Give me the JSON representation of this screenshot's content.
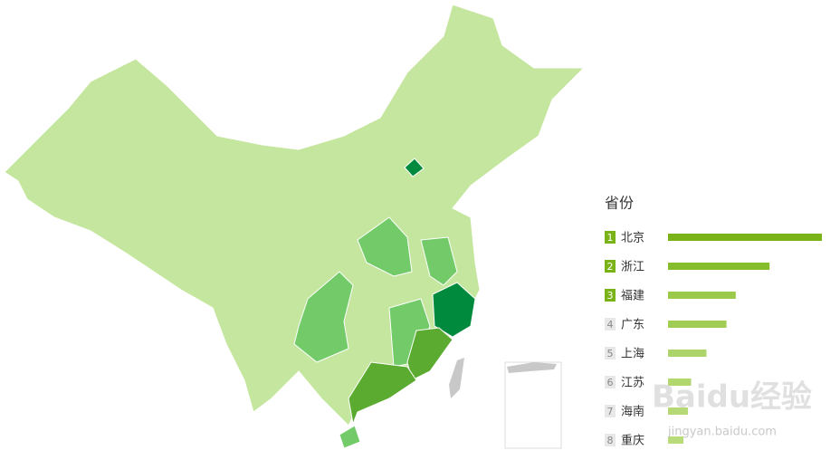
{
  "legend": {
    "title": "省份",
    "items": [
      {
        "rank": 1,
        "name": "北京",
        "value": 100,
        "color": "#7ab317",
        "badge_color": "#7ab317"
      },
      {
        "rank": 2,
        "name": "浙江",
        "value": 66,
        "color": "#86bd2c",
        "badge_color": "#7ab317"
      },
      {
        "rank": 3,
        "name": "福建",
        "value": 44,
        "color": "#9bc94a",
        "badge_color": "#7ab317"
      },
      {
        "rank": 4,
        "name": "广东",
        "value": 38,
        "color": "#a2cd55",
        "badge_color": "#e8e8e8"
      },
      {
        "rank": 5,
        "name": "上海",
        "value": 25,
        "color": "#add468",
        "badge_color": "#e8e8e8"
      },
      {
        "rank": 6,
        "name": "江苏",
        "value": 15,
        "color": "#b2d76f",
        "badge_color": "#e8e8e8"
      },
      {
        "rank": 7,
        "name": "海南",
        "value": 13,
        "color": "#b6d975",
        "badge_color": "#e8e8e8"
      },
      {
        "rank": 8,
        "name": "重庆",
        "value": 10,
        "color": "#b9db7a",
        "badge_color": "#e8e8e8"
      }
    ],
    "max": 100
  },
  "watermark": {
    "brand": "Baidu经验",
    "url": "jingyan.baidu.com"
  }
}
